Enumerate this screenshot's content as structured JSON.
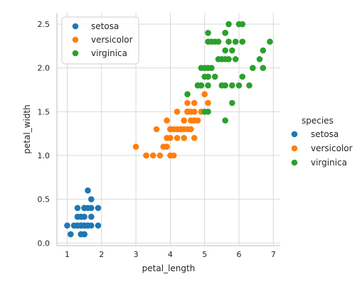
{
  "chart_data": {
    "type": "scatter",
    "title": "",
    "xlabel": "petal_length",
    "ylabel": "petal_width",
    "xlim": [
      0.7,
      7.2
    ],
    "ylim": [
      -0.03,
      2.63
    ],
    "xticks": [
      1,
      2,
      3,
      4,
      5,
      6,
      7
    ],
    "yticks": [
      0.0,
      0.5,
      1.0,
      1.5,
      2.0,
      2.5
    ],
    "grid": true,
    "legend_inner_placement": "upper-left",
    "legend_outer_placement": "right",
    "legend_title": "species",
    "series": [
      {
        "name": "setosa",
        "color": "#1f77b4",
        "x": [
          1.4,
          1.4,
          1.3,
          1.5,
          1.4,
          1.7,
          1.4,
          1.5,
          1.4,
          1.5,
          1.5,
          1.6,
          1.4,
          1.1,
          1.2,
          1.5,
          1.3,
          1.4,
          1.7,
          1.5,
          1.7,
          1.5,
          1.0,
          1.7,
          1.9,
          1.6,
          1.6,
          1.5,
          1.4,
          1.6,
          1.6,
          1.5,
          1.5,
          1.4,
          1.5,
          1.2,
          1.3,
          1.4,
          1.3,
          1.5,
          1.3,
          1.3,
          1.3,
          1.6,
          1.9,
          1.4,
          1.6,
          1.4,
          1.5,
          1.4
        ],
        "y": [
          0.2,
          0.2,
          0.2,
          0.2,
          0.2,
          0.4,
          0.3,
          0.2,
          0.2,
          0.1,
          0.2,
          0.2,
          0.1,
          0.1,
          0.2,
          0.4,
          0.4,
          0.3,
          0.3,
          0.3,
          0.2,
          0.4,
          0.2,
          0.5,
          0.2,
          0.2,
          0.4,
          0.2,
          0.2,
          0.2,
          0.2,
          0.4,
          0.1,
          0.2,
          0.2,
          0.2,
          0.2,
          0.1,
          0.2,
          0.2,
          0.3,
          0.3,
          0.2,
          0.6,
          0.4,
          0.3,
          0.2,
          0.2,
          0.2,
          0.2
        ]
      },
      {
        "name": "versicolor",
        "color": "#ff7f0e",
        "x": [
          4.7,
          4.5,
          4.9,
          4.0,
          4.6,
          4.5,
          4.7,
          3.3,
          4.6,
          3.9,
          3.5,
          4.2,
          4.0,
          4.7,
          3.6,
          4.4,
          4.5,
          4.1,
          4.5,
          3.9,
          4.8,
          4.0,
          4.9,
          4.7,
          4.3,
          4.4,
          4.8,
          5.0,
          4.5,
          3.5,
          3.8,
          3.7,
          3.9,
          5.1,
          4.5,
          4.5,
          4.7,
          4.4,
          4.1,
          4.0,
          4.4,
          4.6,
          4.0,
          3.3,
          4.2,
          4.2,
          4.2,
          4.3,
          3.0,
          4.1
        ],
        "y": [
          1.4,
          1.5,
          1.5,
          1.3,
          1.5,
          1.3,
          1.6,
          1.0,
          1.3,
          1.4,
          1.0,
          1.5,
          1.0,
          1.4,
          1.3,
          1.4,
          1.5,
          1.0,
          1.5,
          1.1,
          1.8,
          1.3,
          1.5,
          1.2,
          1.3,
          1.4,
          1.4,
          1.7,
          1.5,
          1.0,
          1.1,
          1.0,
          1.2,
          1.6,
          1.5,
          1.6,
          1.5,
          1.3,
          1.3,
          1.3,
          1.2,
          1.4,
          1.2,
          1.0,
          1.3,
          1.2,
          1.3,
          1.3,
          1.1,
          1.3
        ]
      },
      {
        "name": "virginica",
        "color": "#2ca02c",
        "x": [
          6.0,
          5.1,
          5.9,
          5.6,
          5.8,
          6.6,
          4.5,
          6.3,
          5.8,
          6.1,
          5.1,
          5.3,
          5.5,
          5.0,
          5.1,
          5.3,
          5.5,
          6.7,
          6.9,
          5.0,
          5.7,
          4.9,
          6.7,
          4.9,
          5.7,
          6.0,
          4.8,
          4.9,
          5.6,
          5.8,
          6.1,
          6.4,
          5.6,
          5.1,
          5.6,
          6.1,
          5.6,
          5.5,
          4.8,
          5.4,
          5.6,
          5.1,
          5.1,
          5.9,
          5.7,
          5.2,
          5.0,
          5.2,
          5.4,
          5.1
        ],
        "y": [
          2.5,
          1.9,
          2.1,
          1.8,
          2.2,
          2.1,
          1.7,
          1.8,
          1.8,
          2.5,
          2.0,
          1.9,
          2.1,
          2.0,
          2.4,
          2.3,
          1.8,
          2.2,
          2.3,
          1.5,
          2.3,
          2.0,
          2.0,
          1.8,
          2.1,
          1.8,
          1.8,
          1.8,
          2.1,
          1.6,
          1.9,
          2.0,
          2.2,
          1.5,
          1.4,
          2.3,
          2.4,
          1.8,
          1.8,
          2.1,
          2.4,
          2.3,
          1.9,
          2.3,
          2.5,
          2.3,
          1.9,
          2.0,
          2.3,
          1.8
        ]
      }
    ]
  }
}
